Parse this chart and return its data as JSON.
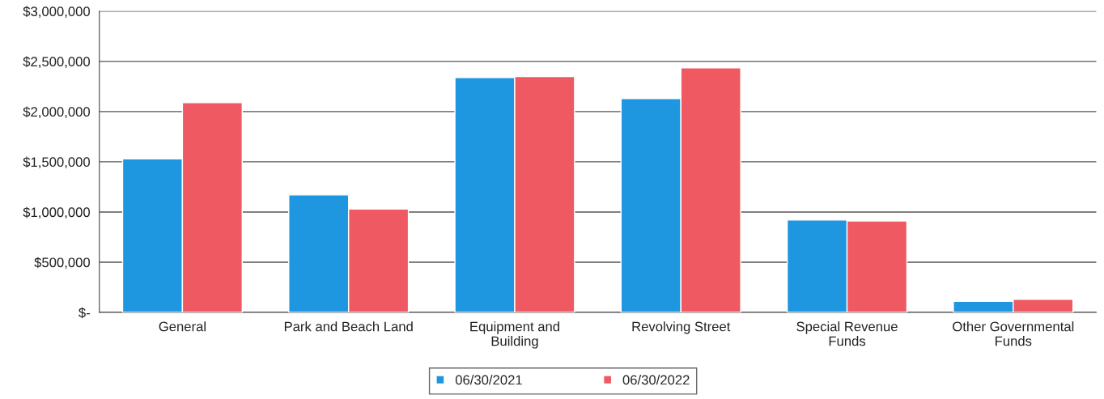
{
  "chart_data": {
    "type": "bar",
    "categories": [
      "General",
      "Park and Beach Land",
      "Equipment and\nBuilding",
      "Revolving Street",
      "Special Revenue\nFunds",
      "Other Governmental\nFunds"
    ],
    "series": [
      {
        "name": "06/30/2021",
        "color": "#1e96e0",
        "values": [
          1530000,
          1170000,
          2340000,
          2130000,
          920000,
          110000
        ]
      },
      {
        "name": "06/30/2022",
        "color": "#ef5a62",
        "values": [
          2090000,
          1030000,
          2350000,
          2435000,
          910000,
          130000
        ]
      }
    ],
    "ylim": [
      0,
      3000000
    ],
    "yticks": [
      {
        "value": 0,
        "label": "$-"
      },
      {
        "value": 500000,
        "label": "$500,000"
      },
      {
        "value": 1000000,
        "label": "$1,000,000"
      },
      {
        "value": 1500000,
        "label": "$1,500,000"
      },
      {
        "value": 2000000,
        "label": "$2,000,000"
      },
      {
        "value": 2500000,
        "label": "$2,500,000"
      },
      {
        "value": 3000000,
        "label": "$3,000,000"
      }
    ],
    "grid": "y",
    "legend": "bottom"
  }
}
